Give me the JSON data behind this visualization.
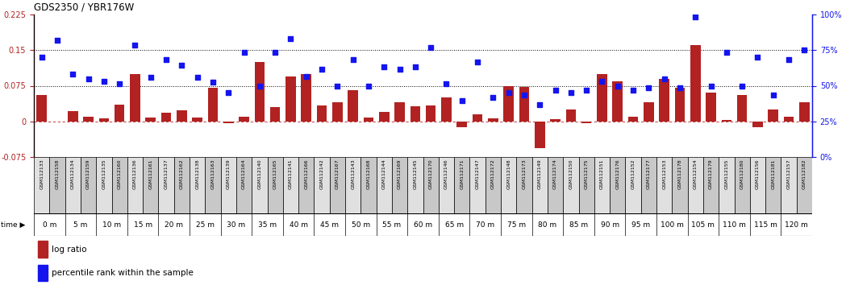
{
  "title": "GDS2350 / YBR176W",
  "samples": [
    "GSM112133",
    "GSM112158",
    "GSM112134",
    "GSM112159",
    "GSM112135",
    "GSM112160",
    "GSM112136",
    "GSM112161",
    "GSM112137",
    "GSM112162",
    "GSM112138",
    "GSM112163",
    "GSM112139",
    "GSM112164",
    "GSM112140",
    "GSM112165",
    "GSM112141",
    "GSM112166",
    "GSM112142",
    "GSM112167",
    "GSM112143",
    "GSM112168",
    "GSM112144",
    "GSM112169",
    "GSM112145",
    "GSM112170",
    "GSM112146",
    "GSM112171",
    "GSM112147",
    "GSM112172",
    "GSM112148",
    "GSM112173",
    "GSM112149",
    "GSM112174",
    "GSM112150",
    "GSM112175",
    "GSM112151",
    "GSM112176",
    "GSM112152",
    "GSM112177",
    "GSM112153",
    "GSM112178",
    "GSM112154",
    "GSM112179",
    "GSM112155",
    "GSM112180",
    "GSM112156",
    "GSM112181",
    "GSM112157",
    "GSM112182"
  ],
  "log_ratio": [
    0.055,
    0.0,
    0.022,
    0.01,
    0.007,
    0.035,
    0.1,
    0.008,
    0.018,
    0.023,
    0.008,
    0.07,
    -0.003,
    0.01,
    0.125,
    0.03,
    0.095,
    0.1,
    0.033,
    0.04,
    0.065,
    0.008,
    0.02,
    0.04,
    0.032,
    0.033,
    0.05,
    -0.012,
    0.015,
    0.006,
    0.075,
    0.072,
    -0.057,
    0.005,
    0.025,
    -0.003,
    0.1,
    0.085,
    0.01,
    0.04,
    0.09,
    0.07,
    0.16,
    0.06,
    0.003,
    0.055,
    -0.012,
    0.025,
    0.01,
    0.04
  ],
  "percentile": [
    0.135,
    0.17,
    0.1,
    0.09,
    0.085,
    0.08,
    0.16,
    0.092,
    0.13,
    0.118,
    0.093,
    0.083,
    0.06,
    0.145,
    0.075,
    0.145,
    0.175,
    0.095,
    0.11,
    0.075,
    0.13,
    0.075,
    0.115,
    0.11,
    0.115,
    0.155,
    0.08,
    0.043,
    0.125,
    0.05,
    0.06,
    0.055,
    0.035,
    0.065,
    0.06,
    0.065,
    0.085,
    0.075,
    0.065,
    0.07,
    0.09,
    0.07,
    0.22,
    0.075,
    0.145,
    0.075,
    0.135,
    0.055,
    0.13,
    0.15
  ],
  "time_labels": [
    "0 m",
    "5 m",
    "10 m",
    "15 m",
    "20 m",
    "25 m",
    "30 m",
    "35 m",
    "40 m",
    "45 m",
    "50 m",
    "55 m",
    "60 m",
    "65 m",
    "70 m",
    "75 m",
    "80 m",
    "85 m",
    "90 m",
    "95 m",
    "100 m",
    "105 m",
    "110 m",
    "115 m",
    "120 m"
  ],
  "time_positions": [
    0,
    2,
    4,
    6,
    8,
    10,
    12,
    14,
    16,
    18,
    20,
    22,
    24,
    26,
    28,
    30,
    32,
    34,
    36,
    38,
    40,
    42,
    44,
    46,
    48
  ],
  "bar_color": "#B22222",
  "dot_color": "#1414EE",
  "bg_color": "#FFFFFF",
  "ymin": -0.075,
  "ymax": 0.225,
  "hline1": 0.075,
  "hline2": 0.15,
  "right_yticks_pct": [
    0,
    25,
    50,
    75,
    100
  ],
  "right_yticklabels": [
    "0%",
    "25%",
    "50%",
    "75%",
    "100%"
  ],
  "legend_logratio": "log ratio",
  "legend_percentile": "percentile rank within the sample",
  "time_bg_color": "#90EE90",
  "sample_bg_light": "#E0E0E0",
  "sample_bg_dark": "#C8C8C8"
}
